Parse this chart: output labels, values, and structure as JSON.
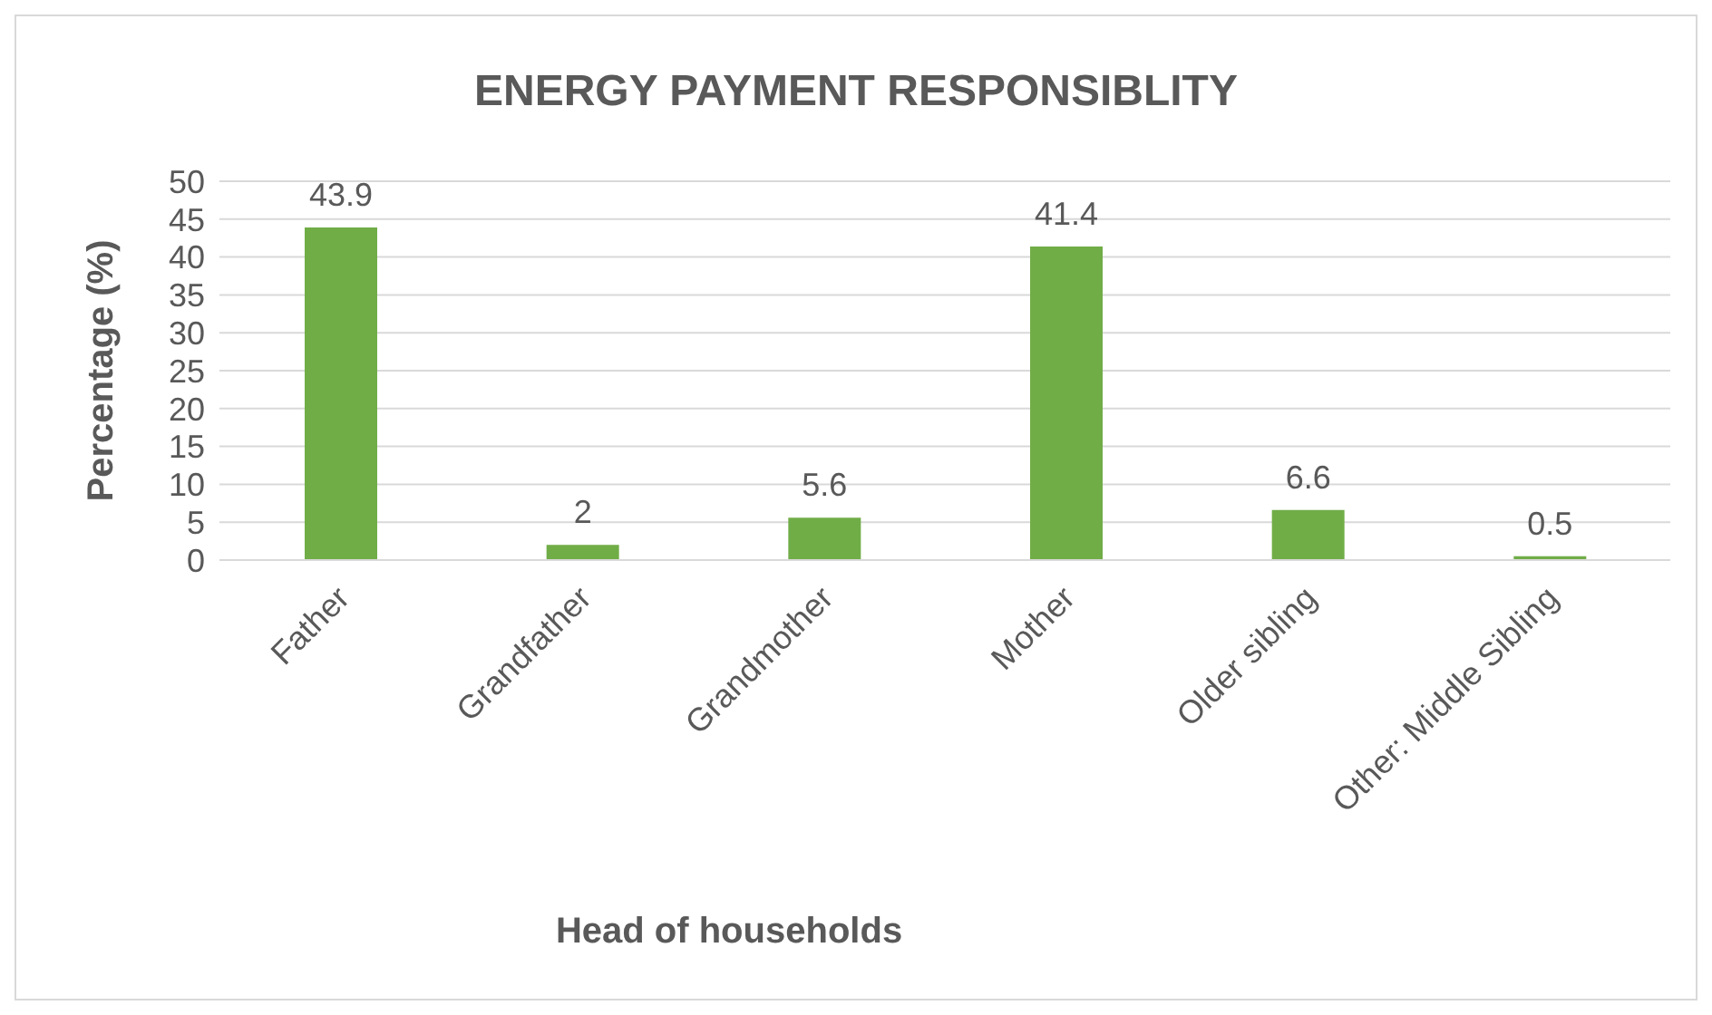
{
  "chart_data": {
    "type": "bar",
    "title": "ENERGY PAYMENT RESPONSIBLITY",
    "xlabel": "Head of households",
    "ylabel": "Percentage (%)",
    "categories": [
      "Father",
      "Grandfather",
      "Grandmother",
      "Mother",
      "Older sibling",
      "Other: Middle Sibling"
    ],
    "values": [
      43.9,
      2,
      5.6,
      41.4,
      6.6,
      0.5
    ],
    "color": "#70ad47",
    "ylim": [
      0,
      50
    ],
    "yticks": [
      0,
      5,
      10,
      15,
      20,
      25,
      30,
      35,
      40,
      45,
      50
    ],
    "grid": "y",
    "data_labels": true
  }
}
